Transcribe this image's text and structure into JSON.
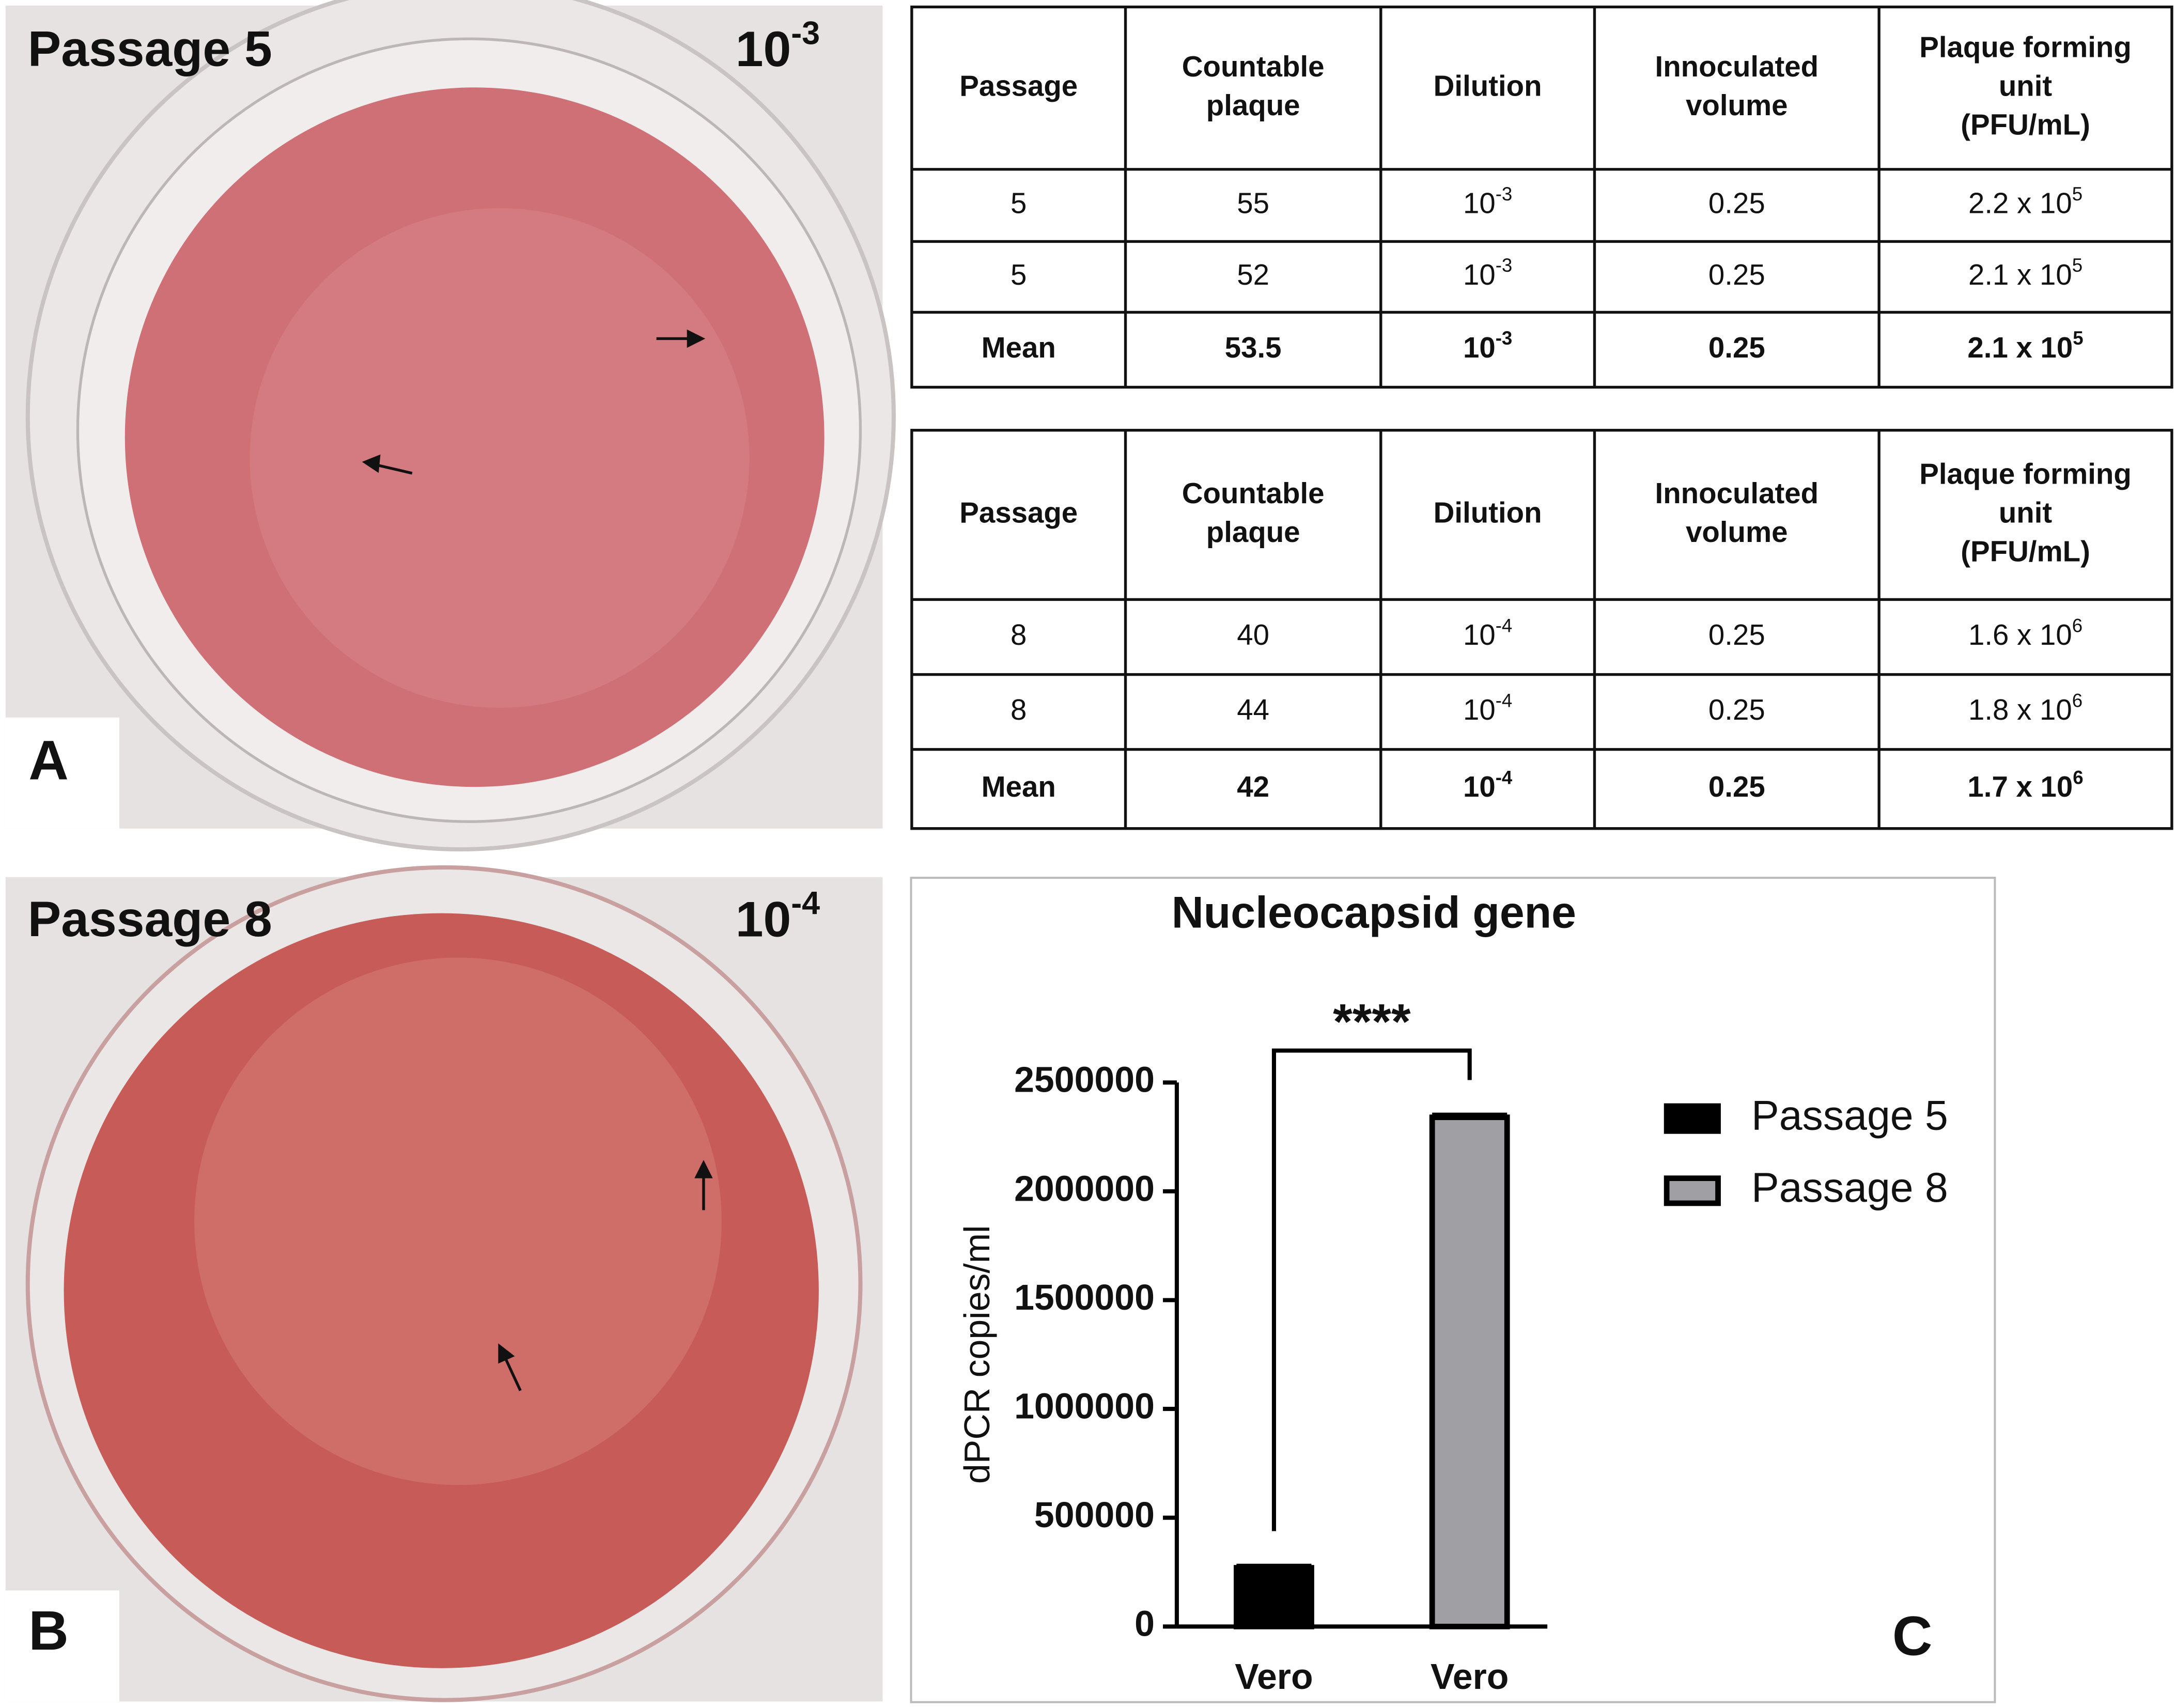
{
  "panels": [
    {
      "label": "Passage 5",
      "dilution": {
        "text": "10",
        "sup": "-3"
      },
      "letter": "A"
    },
    {
      "label": "Passage 8",
      "dilution": {
        "text": "10",
        "sup": "-4"
      },
      "letter": "B"
    }
  ],
  "tables": [
    {
      "header": [
        [
          "Passage"
        ],
        [
          "Countable",
          "plaque"
        ],
        [
          "Dilution"
        ],
        [
          "Innoculated",
          "volume"
        ],
        [
          "Plaque forming",
          "unit",
          "(PFU/mL)"
        ]
      ],
      "rows": [
        [
          "5",
          "55",
          {
            "text": "10",
            "sup": "-3"
          },
          "0.25",
          {
            "text": "2.2 x 10",
            "sup": "5"
          }
        ],
        [
          "5",
          "52",
          {
            "text": "10",
            "sup": "-3"
          },
          "0.25",
          {
            "text": "2.1 x 10",
            "sup": "5"
          }
        ],
        [
          "Mean",
          "53.5",
          {
            "text": "10",
            "sup": "-3"
          },
          "0.25",
          {
            "text": "2.1 x 10",
            "sup": "5"
          }
        ]
      ]
    },
    {
      "header": [
        [
          "Passage"
        ],
        [
          "Countable",
          "plaque"
        ],
        [
          "Dilution"
        ],
        [
          "Innoculated",
          "volume"
        ],
        [
          "Plaque forming",
          "unit",
          "(PFU/mL)"
        ]
      ],
      "rows": [
        [
          "8",
          "40",
          {
            "text": "10",
            "sup": "-4"
          },
          "0.25",
          {
            "text": "1.6 x 10",
            "sup": "6"
          }
        ],
        [
          "8",
          "44",
          {
            "text": "10",
            "sup": "-4"
          },
          "0.25",
          {
            "text": "1.8 x 10",
            "sup": "6"
          }
        ],
        [
          "Mean",
          "42",
          {
            "text": "10",
            "sup": "-4"
          },
          "0.25",
          {
            "text": "1.7 x 10",
            "sup": "6"
          }
        ]
      ]
    }
  ],
  "chart_data": {
    "type": "bar",
    "title": "Nucleocapsid gene",
    "annotation": "****",
    "panel_label": "C",
    "y_label": "dPCR copies/ml",
    "categories": [
      "Vero",
      "Vero"
    ],
    "series": [
      {
        "name": "Passage 5",
        "color": "#000000",
        "values": [
          270000,
          null
        ],
        "errors": [
          9000,
          null
        ]
      },
      {
        "name": "Passage 8",
        "color": "#a0a0a4",
        "values": [
          null,
          2340000
        ],
        "errors": [
          null,
          12000
        ]
      }
    ],
    "ylim": [
      0,
      2500000
    ],
    "yticks": [
      0,
      500000,
      1000000,
      1500000,
      2000000,
      2500000
    ],
    "legend": "right"
  }
}
